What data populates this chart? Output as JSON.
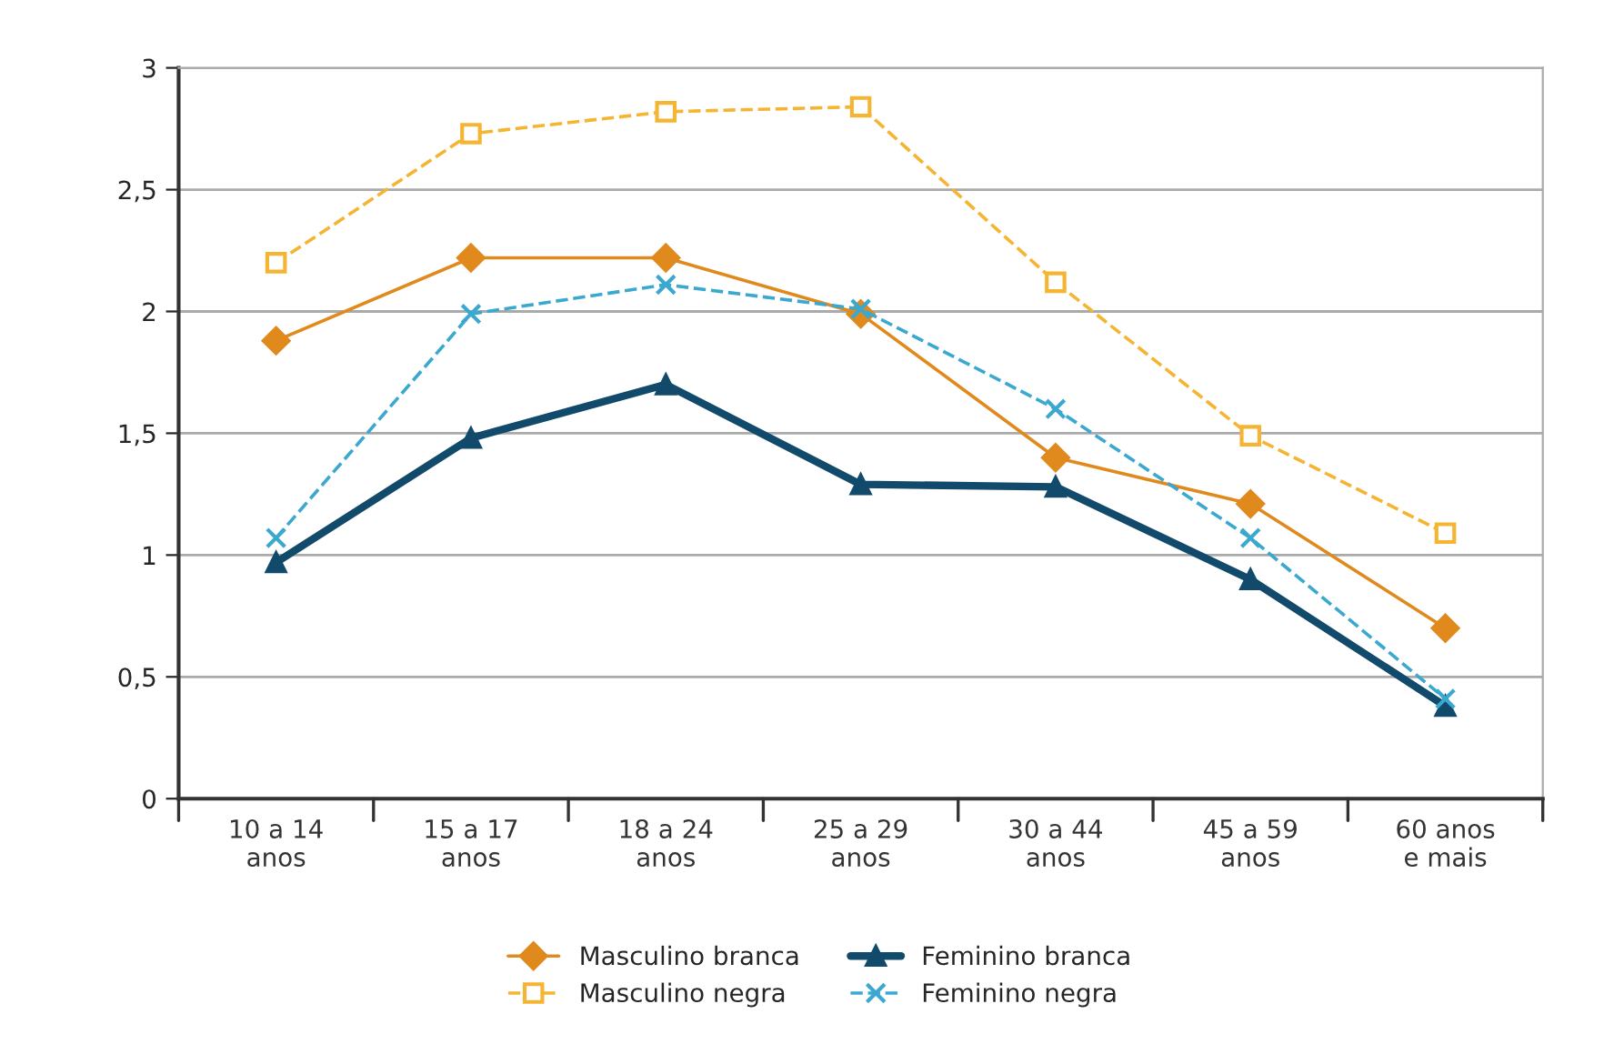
{
  "chart_data": {
    "type": "line",
    "categories": [
      "10 a 14\nanos",
      "15 a 17\nanos",
      "18 a 24\nanos",
      "25 a 29\nanos",
      "30 a 44\nanos",
      "45 a 59\nanos",
      "60 anos\ne mais"
    ],
    "series": [
      {
        "name": "Masculino branca",
        "color": "#e08a1e",
        "marker": "diamond",
        "line_style": "solid",
        "values": [
          1.88,
          2.22,
          2.22,
          1.99,
          1.4,
          1.21,
          0.7
        ]
      },
      {
        "name": "Masculino negra",
        "color": "#f5b532",
        "marker": "square",
        "line_style": "dashed",
        "values": [
          2.2,
          2.73,
          2.82,
          2.84,
          2.12,
          1.49,
          1.09
        ]
      },
      {
        "name": "Feminino branca",
        "color": "#114a6b",
        "marker": "triangle",
        "line_style": "solid",
        "values": [
          0.97,
          1.48,
          1.7,
          1.29,
          1.28,
          0.9,
          0.38
        ]
      },
      {
        "name": "Feminino negra",
        "color": "#3aa8cf",
        "marker": "cross",
        "line_style": "dashed",
        "values": [
          1.07,
          1.99,
          2.11,
          2.01,
          1.6,
          1.07,
          0.41
        ]
      }
    ],
    "ylim": [
      0,
      3
    ],
    "yticks": [
      {
        "value": 0,
        "label": "0"
      },
      {
        "value": 0.5,
        "label": "0,5"
      },
      {
        "value": 1,
        "label": "1"
      },
      {
        "value": 1.5,
        "label": "1,5"
      },
      {
        "value": 2,
        "label": "2"
      },
      {
        "value": 2.5,
        "label": "2,5"
      },
      {
        "value": 3,
        "label": "3"
      }
    ],
    "grid": "y",
    "legend": "bottom"
  }
}
